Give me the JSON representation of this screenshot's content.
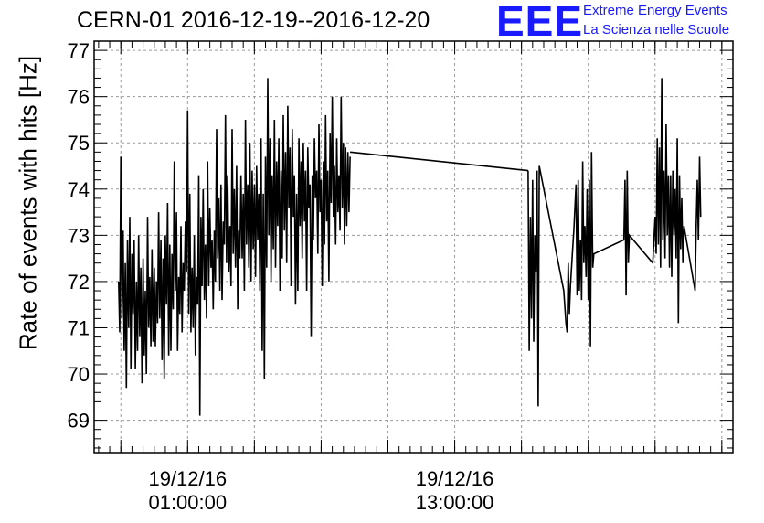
{
  "header": {
    "title": "CERN-01 2016-12-19--2016-12-20",
    "logo_text": "EEE",
    "subtitle_line1": "Extreme Energy Events",
    "subtitle_line2": "La Scienza nelle Scuole",
    "brand_color": "#1a1aff"
  },
  "chart_data": {
    "type": "line",
    "title": "CERN-01 2016-12-19--2016-12-20",
    "ylabel": "Rate of events with hits [Hz]",
    "xlabel": "",
    "ylim": [
      68.3,
      77.2
    ],
    "xlim_hours": [
      -3.2,
      25.5
    ],
    "yticks": [
      69,
      70,
      71,
      72,
      73,
      74,
      75,
      76,
      77
    ],
    "xticks": [
      {
        "hour": 1,
        "label_line1": "19/12/16",
        "label_line2": "01:00:00"
      },
      {
        "hour": 13,
        "label_line1": "19/12/16",
        "label_line2": "13:00:00"
      }
    ],
    "grid": true,
    "series": [
      {
        "points": [
          [
            -2.1,
            72.0
          ],
          [
            -2.05,
            70.9
          ],
          [
            -2.0,
            74.7
          ],
          [
            -1.95,
            71.2
          ],
          [
            -1.9,
            73.1
          ],
          [
            -1.85,
            70.5
          ],
          [
            -1.8,
            72.4
          ],
          [
            -1.75,
            69.7
          ],
          [
            -1.7,
            72.9
          ],
          [
            -1.65,
            71.0
          ],
          [
            -1.6,
            73.4
          ],
          [
            -1.55,
            70.1
          ],
          [
            -1.5,
            72.6
          ],
          [
            -1.45,
            71.3
          ],
          [
            -1.4,
            72.9
          ],
          [
            -1.35,
            70.1
          ],
          [
            -1.3,
            72.0
          ],
          [
            -1.25,
            70.5
          ],
          [
            -1.2,
            73.0
          ],
          [
            -1.15,
            70.8
          ],
          [
            -1.1,
            72.3
          ],
          [
            -1.05,
            69.8
          ],
          [
            -1.0,
            72.5
          ],
          [
            -0.95,
            70.4
          ],
          [
            -0.9,
            71.8
          ],
          [
            -0.85,
            70.0
          ],
          [
            -0.8,
            73.4
          ],
          [
            -0.75,
            71.0
          ],
          [
            -0.7,
            72.1
          ],
          [
            -0.65,
            70.6
          ],
          [
            -0.6,
            72.7
          ],
          [
            -0.55,
            70.7
          ],
          [
            -0.5,
            72.3
          ],
          [
            -0.45,
            70.6
          ],
          [
            -0.4,
            72.0
          ],
          [
            -0.35,
            71.1
          ],
          [
            -0.3,
            73.5
          ],
          [
            -0.25,
            71.2
          ],
          [
            -0.2,
            72.9
          ],
          [
            -0.15,
            70.3
          ],
          [
            -0.1,
            72.5
          ],
          [
            -0.05,
            69.9
          ],
          [
            0.0,
            73.0
          ],
          [
            0.05,
            71.5
          ],
          [
            0.1,
            73.7
          ],
          [
            0.15,
            70.4
          ],
          [
            0.2,
            72.8
          ],
          [
            0.25,
            70.5
          ],
          [
            0.3,
            72.6
          ],
          [
            0.35,
            71.4
          ],
          [
            0.4,
            74.6
          ],
          [
            0.45,
            71.8
          ],
          [
            0.5,
            73.5
          ],
          [
            0.55,
            70.5
          ],
          [
            0.6,
            72.1
          ],
          [
            0.65,
            71.3
          ],
          [
            0.7,
            73.2
          ],
          [
            0.75,
            70.9
          ],
          [
            0.8,
            72.4
          ],
          [
            0.85,
            71.8
          ],
          [
            0.9,
            73.3
          ],
          [
            0.95,
            72.2
          ],
          [
            1.0,
            75.7
          ],
          [
            1.05,
            71.3
          ],
          [
            1.1,
            73.9
          ],
          [
            1.15,
            70.9
          ],
          [
            1.2,
            72.3
          ],
          [
            1.25,
            71.0
          ],
          [
            1.3,
            73.0
          ],
          [
            1.35,
            70.4
          ],
          [
            1.4,
            72.1
          ],
          [
            1.45,
            71.5
          ],
          [
            1.5,
            74.3
          ],
          [
            1.55,
            69.1
          ],
          [
            1.6,
            73.4
          ],
          [
            1.65,
            71.9
          ],
          [
            1.7,
            74.0
          ],
          [
            1.75,
            71.6
          ],
          [
            1.8,
            72.8
          ],
          [
            1.85,
            71.2
          ],
          [
            1.9,
            74.6
          ],
          [
            1.95,
            71.9
          ],
          [
            2.0,
            73.6
          ],
          [
            2.05,
            72.3
          ],
          [
            2.1,
            72.9
          ],
          [
            2.15,
            71.4
          ],
          [
            2.2,
            73.1
          ],
          [
            2.25,
            72.0
          ],
          [
            2.3,
            75.3
          ],
          [
            2.35,
            72.5
          ],
          [
            2.4,
            73.8
          ],
          [
            2.45,
            71.8
          ],
          [
            2.5,
            74.1
          ],
          [
            2.55,
            71.6
          ],
          [
            2.6,
            73.3
          ],
          [
            2.65,
            72.8
          ],
          [
            2.7,
            75.6
          ],
          [
            2.75,
            72.4
          ],
          [
            2.8,
            74.3
          ],
          [
            2.85,
            72.2
          ],
          [
            2.9,
            73.2
          ],
          [
            2.95,
            71.9
          ],
          [
            3.0,
            75.3
          ],
          [
            3.05,
            72.6
          ],
          [
            3.1,
            74.0
          ],
          [
            3.15,
            72.3
          ],
          [
            3.2,
            74.5
          ],
          [
            3.25,
            71.4
          ],
          [
            3.3,
            73.1
          ],
          [
            3.35,
            72.5
          ],
          [
            3.4,
            74.3
          ],
          [
            3.45,
            72.5
          ],
          [
            3.5,
            73.9
          ],
          [
            3.55,
            71.8
          ],
          [
            3.6,
            75.5
          ],
          [
            3.65,
            72.8
          ],
          [
            3.7,
            74.1
          ],
          [
            3.75,
            72.3
          ],
          [
            3.8,
            75.0
          ],
          [
            3.85,
            72.0
          ],
          [
            3.9,
            74.4
          ],
          [
            3.95,
            72.7
          ],
          [
            4.0,
            74.1
          ],
          [
            4.05,
            72.1
          ],
          [
            4.1,
            74.5
          ],
          [
            4.15,
            72.9
          ],
          [
            4.2,
            73.9
          ],
          [
            4.25,
            71.8
          ],
          [
            4.3,
            75.1
          ],
          [
            4.35,
            70.5
          ],
          [
            4.4,
            73.9
          ],
          [
            4.45,
            69.9
          ],
          [
            4.5,
            74.7
          ],
          [
            4.55,
            72.3
          ],
          [
            4.6,
            76.4
          ],
          [
            4.65,
            73.0
          ],
          [
            4.7,
            75.1
          ],
          [
            4.75,
            72.0
          ],
          [
            4.8,
            74.3
          ],
          [
            4.85,
            72.7
          ],
          [
            4.9,
            75.5
          ],
          [
            4.95,
            72.3
          ],
          [
            5.0,
            74.6
          ],
          [
            5.05,
            73.2
          ],
          [
            5.1,
            75.1
          ],
          [
            5.15,
            71.8
          ],
          [
            5.2,
            74.4
          ],
          [
            5.25,
            72.5
          ],
          [
            5.3,
            75.6
          ],
          [
            5.35,
            73.1
          ],
          [
            5.4,
            74.8
          ],
          [
            5.45,
            72.4
          ],
          [
            5.5,
            75.8
          ],
          [
            5.55,
            73.6
          ],
          [
            5.6,
            74.9
          ],
          [
            5.65,
            71.9
          ],
          [
            5.7,
            75.3
          ],
          [
            5.75,
            73.4
          ],
          [
            5.8,
            74.3
          ],
          [
            5.85,
            71.5
          ],
          [
            5.9,
            73.9
          ],
          [
            5.95,
            71.8
          ],
          [
            6.0,
            75.1
          ],
          [
            6.05,
            73.2
          ],
          [
            6.1,
            74.6
          ],
          [
            6.15,
            72.5
          ],
          [
            6.2,
            75.0
          ],
          [
            6.25,
            73.3
          ],
          [
            6.3,
            74.4
          ],
          [
            6.35,
            71.8
          ],
          [
            6.4,
            74.9
          ],
          [
            6.45,
            73.6
          ],
          [
            6.5,
            74.1
          ],
          [
            6.55,
            70.8
          ],
          [
            6.6,
            74.3
          ],
          [
            6.65,
            72.9
          ],
          [
            6.7,
            75.1
          ],
          [
            6.75,
            73.8
          ],
          [
            6.8,
            74.4
          ],
          [
            6.85,
            72.6
          ],
          [
            6.9,
            75.4
          ],
          [
            6.95,
            73.5
          ],
          [
            7.0,
            74.2
          ],
          [
            7.05,
            71.9
          ],
          [
            7.1,
            74.6
          ],
          [
            7.15,
            72.8
          ],
          [
            7.2,
            75.6
          ],
          [
            7.25,
            73.3
          ],
          [
            7.3,
            74.4
          ],
          [
            7.35,
            72.0
          ],
          [
            7.4,
            75.2
          ],
          [
            7.45,
            73.7
          ],
          [
            7.5,
            76.0
          ],
          [
            7.55,
            73.4
          ],
          [
            7.6,
            74.5
          ],
          [
            7.65,
            72.8
          ],
          [
            7.7,
            75.1
          ],
          [
            7.75,
            73.5
          ],
          [
            7.8,
            74.3
          ],
          [
            7.85,
            73.1
          ],
          [
            7.9,
            76.0
          ],
          [
            7.95,
            73.6
          ],
          [
            8.0,
            75.0
          ],
          [
            8.05,
            72.8
          ],
          [
            8.1,
            74.9
          ],
          [
            8.15,
            73.2
          ],
          [
            8.2,
            74.8
          ],
          [
            8.25,
            73.5
          ],
          [
            8.3,
            74.7
          ]
        ]
      },
      {
        "points": [
          [
            8.3,
            74.8
          ],
          [
            16.3,
            74.4
          ]
        ]
      },
      {
        "points": [
          [
            16.3,
            74.4
          ],
          [
            16.35,
            70.5
          ],
          [
            16.4,
            73.4
          ],
          [
            16.45,
            71.2
          ],
          [
            16.5,
            74.2
          ],
          [
            16.55,
            70.7
          ],
          [
            16.6,
            73.0
          ],
          [
            16.65,
            72.2
          ],
          [
            16.7,
            74.4
          ],
          [
            16.75,
            69.3
          ],
          [
            16.8,
            74.5
          ],
          [
            17.9,
            71.8
          ],
          [
            18.0,
            71.1
          ],
          [
            18.05,
            70.9
          ],
          [
            18.1,
            72.4
          ],
          [
            18.15,
            71.3
          ],
          [
            18.2,
            71.9
          ],
          [
            18.3,
            72.7
          ],
          [
            18.35,
            73.1
          ],
          [
            18.45,
            74.1
          ],
          [
            18.5,
            71.7
          ],
          [
            18.55,
            74.2
          ],
          [
            18.6,
            71.8
          ],
          [
            18.65,
            72.9
          ],
          [
            18.7,
            71.6
          ],
          [
            18.75,
            74.6
          ],
          [
            18.8,
            72.4
          ],
          [
            18.85,
            73.2
          ],
          [
            18.9,
            72.1
          ],
          [
            18.95,
            74.0
          ],
          [
            19.0,
            71.6
          ],
          [
            19.05,
            74.2
          ],
          [
            19.1,
            70.6
          ],
          [
            19.15,
            74.8
          ],
          [
            19.2,
            72.3
          ],
          [
            19.25,
            72.6
          ],
          [
            20.6,
            72.9
          ],
          [
            20.65,
            74.2
          ],
          [
            20.7,
            71.7
          ],
          [
            20.75,
            74.4
          ],
          [
            20.8,
            72.4
          ],
          [
            20.85,
            73.0
          ],
          [
            21.9,
            72.4
          ],
          [
            22.0,
            73.4
          ],
          [
            22.05,
            72.6
          ],
          [
            22.1,
            75.1
          ],
          [
            22.15,
            72.8
          ],
          [
            22.2,
            74.9
          ],
          [
            22.25,
            72.3
          ],
          [
            22.3,
            76.4
          ],
          [
            22.35,
            72.9
          ],
          [
            22.4,
            74.4
          ],
          [
            22.45,
            72.5
          ],
          [
            22.5,
            75.4
          ],
          [
            22.55,
            73.0
          ],
          [
            22.6,
            74.3
          ],
          [
            22.65,
            72.3
          ],
          [
            22.7,
            74.3
          ],
          [
            22.75,
            72.1
          ],
          [
            22.8,
            74.4
          ],
          [
            22.85,
            73.0
          ],
          [
            22.9,
            74.0
          ],
          [
            22.95,
            72.5
          ],
          [
            23.0,
            75.1
          ],
          [
            23.05,
            71.1
          ],
          [
            23.1,
            74.3
          ],
          [
            23.15,
            72.7
          ],
          [
            23.2,
            73.8
          ],
          [
            23.25,
            72.4
          ],
          [
            23.3,
            73.2
          ],
          [
            23.8,
            71.8
          ],
          [
            23.85,
            73.2
          ],
          [
            23.9,
            74.2
          ],
          [
            23.95,
            72.9
          ],
          [
            24.0,
            74.7
          ],
          [
            24.05,
            73.4
          ]
        ]
      }
    ]
  }
}
